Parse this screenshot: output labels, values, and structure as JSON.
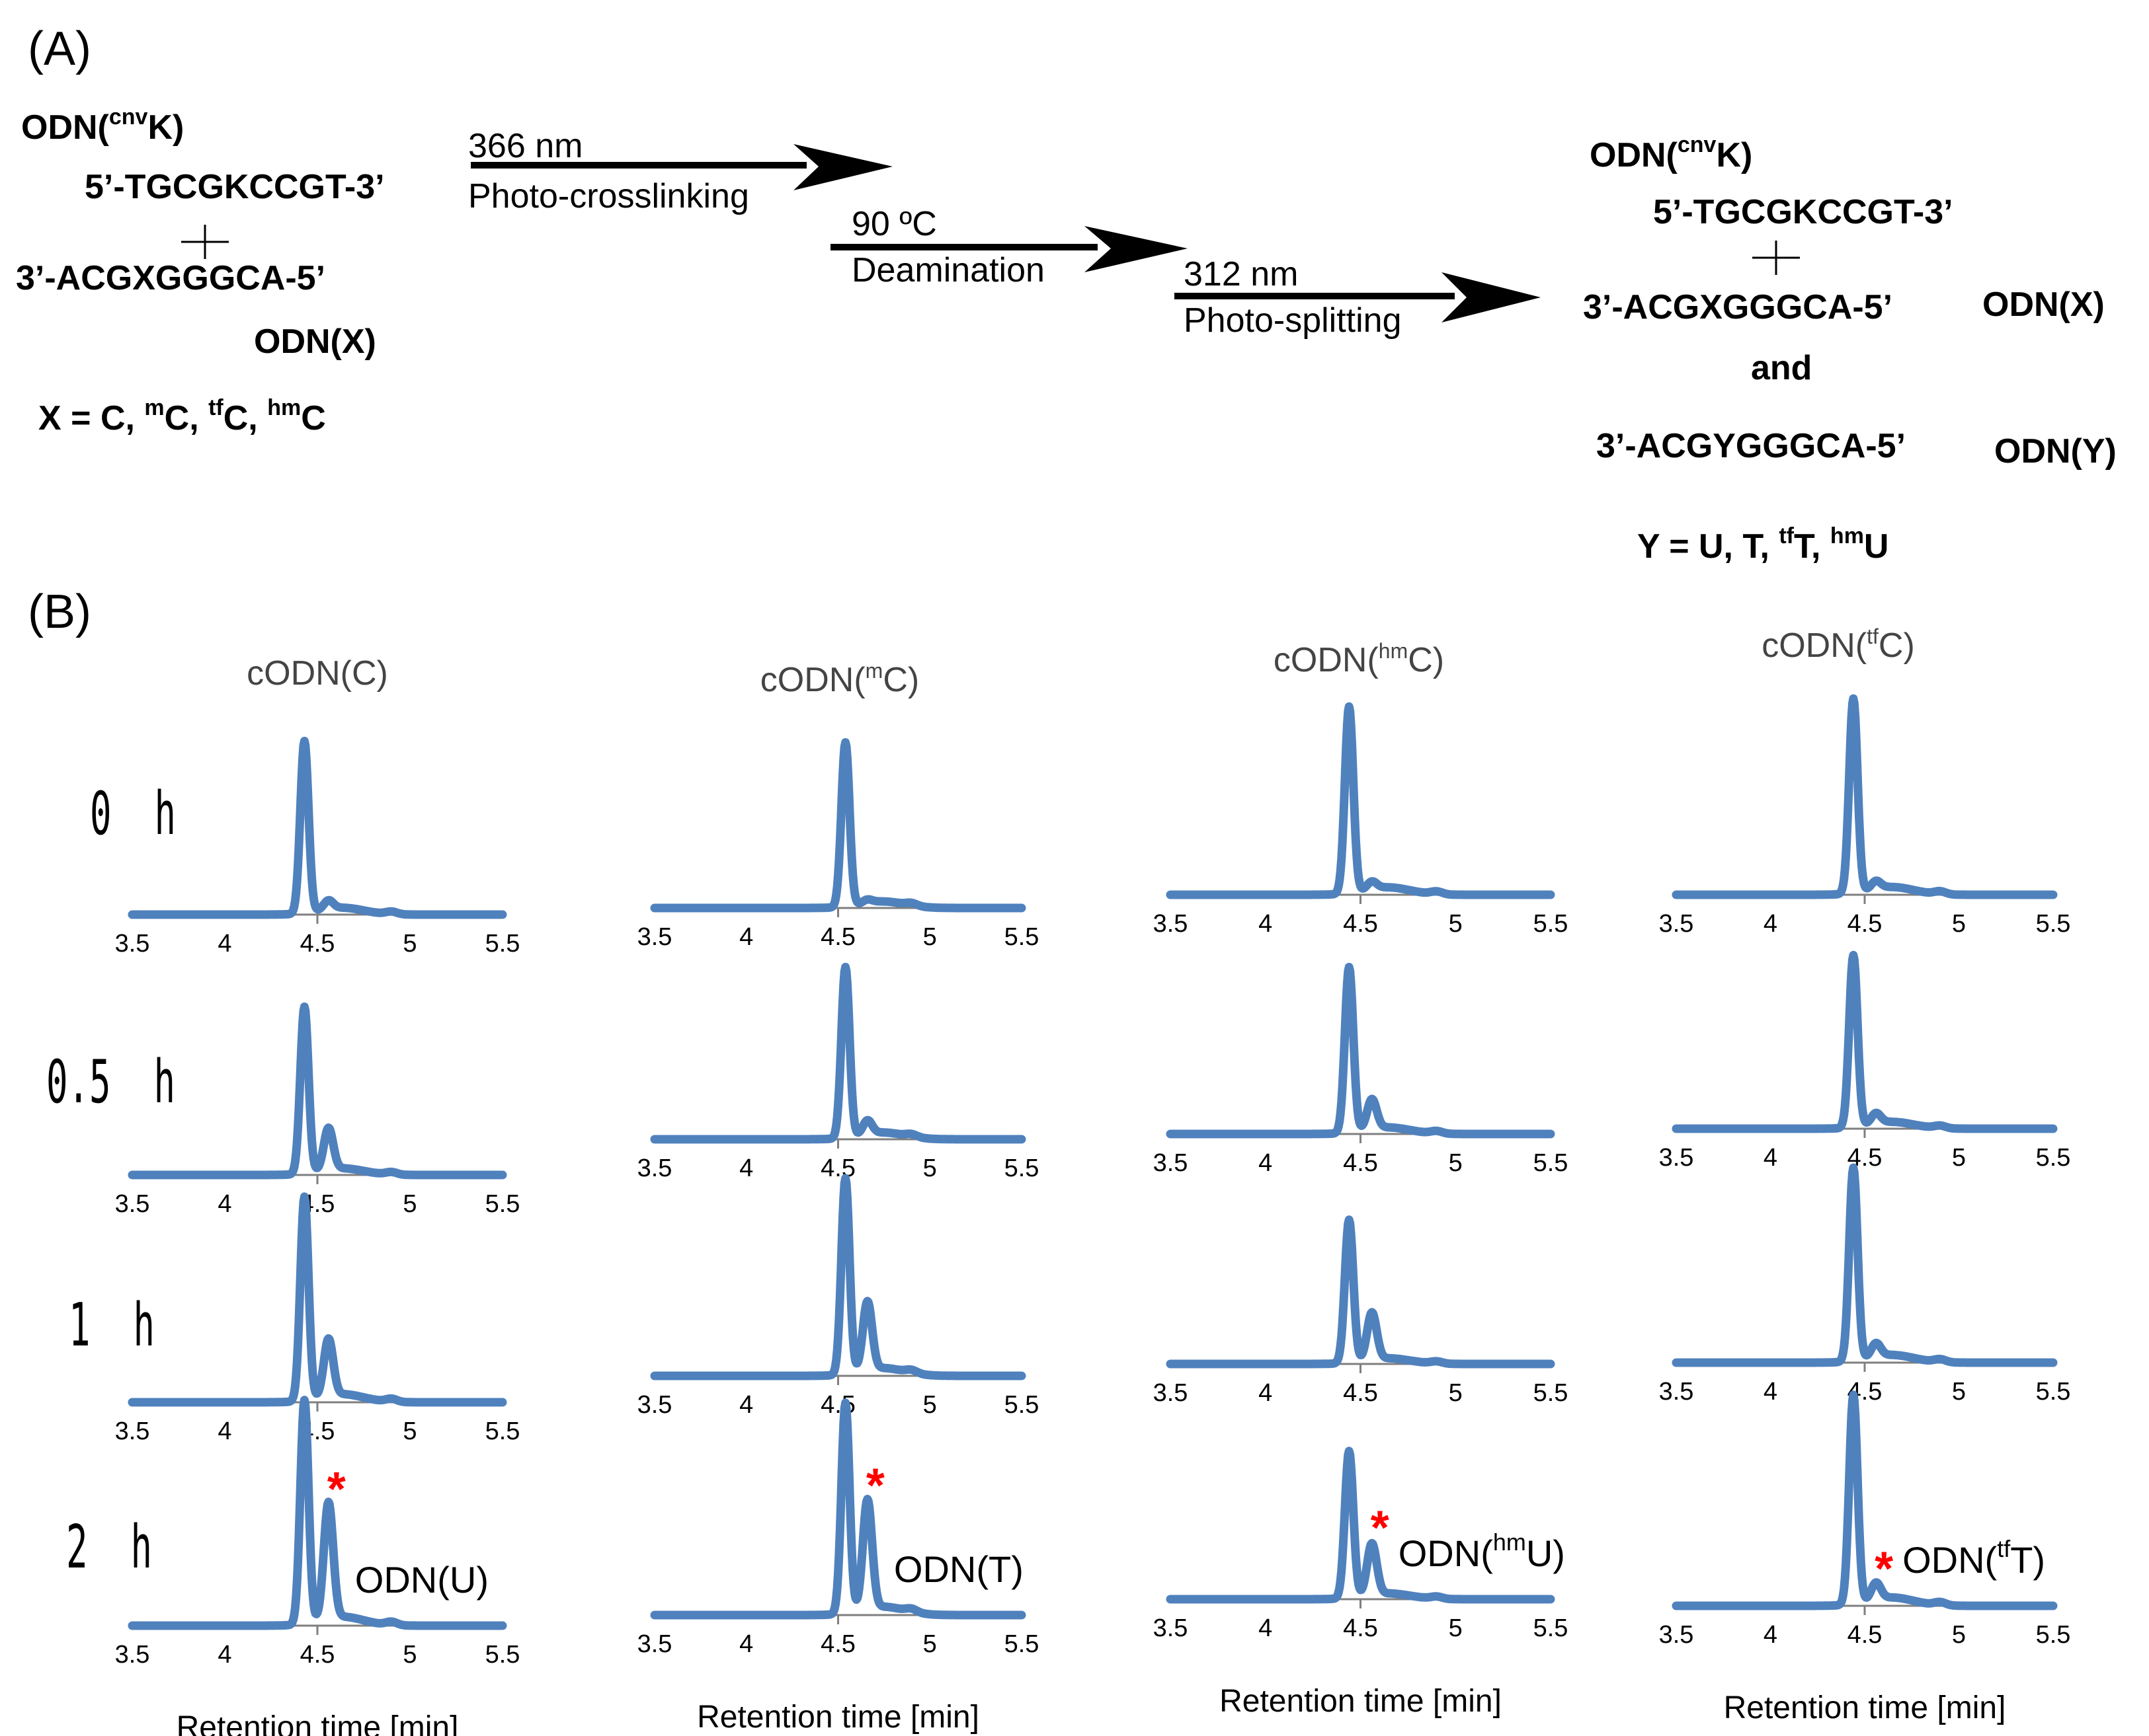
{
  "panel_a": {
    "label": "(A)",
    "top_strand_name": "ODN(",
    "top_strand_sup": "cnv",
    "top_strand_suffix": "K)",
    "top_seq": "5’-TGCGKCCGT-3’",
    "bottom_seq": "3’-ACGXGGGCA-5’",
    "bottom_name": "ODN(X)",
    "x_def": {
      "prefix": "X = C, ",
      "sup1": "m",
      "t1": "C, ",
      "sup2": "tf",
      "t2": "C, ",
      "sup3": "hm",
      "t3": "C"
    },
    "steps": [
      {
        "above": "366 nm",
        "below": "Photo-crosslinking"
      },
      {
        "above": "90 ºC",
        "below": "Deamination"
      },
      {
        "above": "312 nm",
        "below": "Photo-splitting"
      }
    ],
    "product_top_name": "ODN(",
    "product_top_sup": "cnv",
    "product_top_suffix": "K)",
    "product_top_seq": "5’-TGCGKCCGT-3’",
    "product_bottom_seq": "3’-ACGXGGGCA-5’",
    "product_bottom_name": "ODN(X)",
    "and": "and",
    "product_y_seq": "3’-ACGYGGGCA-5’",
    "product_y_name": "ODN(Y)",
    "y_def": {
      "prefix": "Y = U, T, ",
      "sup1": "tf",
      "t1": "T, ",
      "sup2": "hm",
      "t2": "U"
    }
  },
  "panel_b": {
    "label": "(B)",
    "xlabel": "Retention time [min]",
    "time_labels": [
      "0  h",
      "0.5  h",
      "1  h",
      "2  h"
    ]
  },
  "colors": {
    "trace": "#4f81bd",
    "star": "#ff0000",
    "axis": "#7f7f7f"
  },
  "chart_data": {
    "type": "line",
    "x_ticks": [
      "3.5",
      "4",
      "4.5",
      "5",
      "5.5"
    ],
    "xlim": [
      3.5,
      5.5
    ],
    "columns": [
      {
        "title": {
          "pre": "cODN(",
          "sup": "",
          "post": "C)"
        },
        "peak1": 4.43,
        "peak2": 4.56,
        "rows": [
          {
            "time": "0 h",
            "h1": 1.0,
            "h2": 0.05
          },
          {
            "time": "0.5 h",
            "h1": 1.0,
            "h2": 0.25
          },
          {
            "time": "1 h",
            "h1": 1.0,
            "h2": 0.28
          },
          {
            "time": "2 h",
            "h1": 1.0,
            "h2": 0.52
          }
        ],
        "product_label": {
          "pre": "ODN(U)",
          "sup": "",
          "post": ""
        }
      },
      {
        "title": {
          "pre": "cODN(",
          "sup": "m",
          "post": "C)"
        },
        "peak1": 4.54,
        "peak2": 4.66,
        "rows": [
          {
            "time": "0 h",
            "h1": 1.0,
            "h2": 0.02
          },
          {
            "time": "0.5 h",
            "h1": 1.0,
            "h2": 0.08
          },
          {
            "time": "1 h",
            "h1": 1.0,
            "h2": 0.35
          },
          {
            "time": "2 h",
            "h1": 1.0,
            "h2": 0.52
          }
        ],
        "product_label": {
          "pre": "ODN(T)",
          "sup": "",
          "post": ""
        }
      },
      {
        "title": {
          "pre": "cODN(",
          "sup": "hm",
          "post": "C)"
        },
        "peak1": 4.44,
        "peak2": 4.56,
        "rows": [
          {
            "time": "0 h",
            "h1": 1.0,
            "h2": 0.04
          },
          {
            "time": "0.5 h",
            "h1": 1.0,
            "h2": 0.18
          },
          {
            "time": "1 h",
            "h1": 1.0,
            "h2": 0.33
          },
          {
            "time": "2 h",
            "h1": 1.0,
            "h2": 0.35
          }
        ],
        "product_label": {
          "pre": "ODN(",
          "sup": "hm",
          "post": "U)"
        }
      },
      {
        "title": {
          "pre": "cODN(",
          "sup": "tf",
          "post": "C)"
        },
        "peak1": 4.44,
        "peak2": 4.56,
        "rows": [
          {
            "time": "0 h",
            "h1": 1.0,
            "h2": 0.04
          },
          {
            "time": "0.5 h",
            "h1": 1.0,
            "h2": 0.06
          },
          {
            "time": "1 h",
            "h1": 1.0,
            "h2": 0.07
          },
          {
            "time": "2 h",
            "h1": 1.0,
            "h2": 0.08
          }
        ],
        "product_label": {
          "pre": "ODN(",
          "sup": "tf",
          "post": "T)"
        }
      }
    ]
  }
}
